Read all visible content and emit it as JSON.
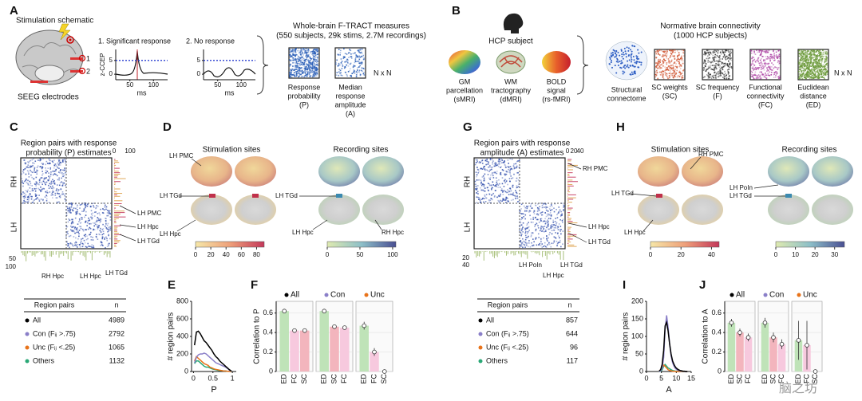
{
  "figure": {
    "A": {
      "label": "A",
      "title": "Stimulation schematic",
      "electrodes": "SEEG electrodes",
      "electrode_numbers": [
        "1",
        "2"
      ],
      "traces": [
        {
          "title": "1. Significant response",
          "ylabel": "z-CCEP",
          "xlabel": "ms",
          "xlim": [
            20,
            130
          ],
          "ylim": [
            -2,
            9
          ],
          "xticks": [
            50,
            100
          ],
          "yticks": [
            0,
            5
          ]
        },
        {
          "title": "2. No response",
          "xlabel": "ms",
          "xlim": [
            20,
            130
          ],
          "ylim": [
            -2,
            9
          ],
          "xticks": [
            50,
            100
          ],
          "yticks": [
            0,
            5
          ]
        }
      ],
      "heading": "Whole-brain F-TRACT measures",
      "subheading": "(550 subjects, 29k stims, 2.7M recordings)",
      "matrices": [
        [
          "Response",
          "probability",
          "(P)"
        ],
        [
          "Median",
          "response",
          "amplitude",
          "(A)"
        ]
      ],
      "size": "N x N"
    },
    "B": {
      "label": "B",
      "subject": "HCP subject",
      "modalities": [
        [
          "GM",
          "parcellation",
          "(sMRI)"
        ],
        [
          "WM",
          "tractography",
          "(dMRI)"
        ],
        [
          "BOLD",
          "signal",
          "(rs-fMRI)"
        ]
      ],
      "connectome": [
        "Structural",
        "connectome"
      ],
      "heading": "Normative brain connectivity",
      "subheading": "(1000 HCP subjects)",
      "matrices": [
        [
          "SC weights",
          "(SC)"
        ],
        [
          "SC frequency",
          "(F)"
        ],
        [
          "Functional",
          "connectivity",
          "(FC)"
        ],
        [
          "Euclidean",
          "distance",
          "(ED)"
        ]
      ],
      "size": "N x N"
    },
    "C": {
      "label": "C",
      "title": [
        "Region pairs with response",
        "probability (P) estimates"
      ],
      "hemispheres": [
        "RH",
        "LH"
      ],
      "side_ticks": [
        0,
        100
      ],
      "bottom_ticks": [
        50,
        100
      ],
      "annotations": [
        "LH PMC",
        "LH Hpc",
        "LH TGd",
        "RH Hpc",
        "LH Hpc",
        "LH TGd"
      ]
    },
    "D": {
      "label": "D",
      "groups": [
        "Stimulation sites",
        "Recording sites"
      ],
      "annotations": [
        "LH PMC",
        "LH TGd",
        "LH Hpc",
        "LH TGd",
        "LH Hpc",
        "RH Hpc"
      ],
      "colorbars": [
        {
          "lim": [
            0,
            90
          ],
          "ticks": [
            0,
            20,
            40,
            60,
            80
          ]
        },
        {
          "lim": [
            0,
            105
          ],
          "ticks": [
            0,
            50,
            100
          ]
        }
      ]
    },
    "G": {
      "label": "G",
      "title": [
        "Region pairs with response",
        "amplitude (A) estimates"
      ],
      "hemispheres": [
        "RH",
        "LH"
      ],
      "side_ticks": [
        0,
        20,
        40
      ],
      "bottom_ticks": [
        20,
        40
      ],
      "annotations": [
        "RH PMC",
        "LH Hpc",
        "LH TGd",
        "LH PoIn",
        "LH Hpc",
        "LH TGd"
      ]
    },
    "H": {
      "label": "H",
      "groups": [
        "Stimulation sites",
        "Recording sites"
      ],
      "annotations": [
        "RH PMC",
        "LH TGd",
        "LH Hpc",
        "LH PoIn",
        "LH TGd"
      ],
      "colorbars": [
        {
          "lim": [
            0,
            45
          ],
          "ticks": [
            0,
            20,
            40
          ]
        },
        {
          "lim": [
            0,
            35
          ],
          "ticks": [
            0,
            10,
            20,
            30
          ]
        }
      ]
    },
    "watermark": "脑之坊"
  },
  "chart_data": [
    {
      "type": "line",
      "panel": "E",
      "xlabel": "P",
      "ylabel": "# region pairs",
      "x": [
        0.025,
        0.075,
        0.125,
        0.175,
        0.225,
        0.275,
        0.325,
        0.375,
        0.425,
        0.475,
        0.525,
        0.575,
        0.625,
        0.675,
        0.725,
        0.775,
        0.825,
        0.875,
        0.925,
        0.975
      ],
      "xlim": [
        -0.05,
        1.1
      ],
      "xticks": [
        0,
        0.5,
        1
      ],
      "ylim": [
        0,
        800
      ],
      "yticks": [
        0,
        200,
        400,
        600,
        800
      ],
      "legend_header": [
        "Region pairs",
        "n"
      ],
      "series": [
        {
          "name": "All",
          "n": 4989,
          "color": "#000000",
          "values": [
            300,
            450,
            460,
            430,
            390,
            350,
            330,
            300,
            270,
            240,
            200,
            170,
            150,
            120,
            100,
            80,
            60,
            40,
            20,
            5
          ]
        },
        {
          "name": "Con (Fᵢⱼ >.75)",
          "n": 2792,
          "color": "#8a7fc8",
          "values": [
            100,
            160,
            190,
            200,
            200,
            210,
            200,
            180,
            160,
            140,
            120,
            100,
            90,
            80,
            70,
            60,
            50,
            35,
            15,
            5
          ]
        },
        {
          "name": "Unc (Fᵢⱼ <.25)",
          "n": 1065,
          "color": "#e8731a",
          "values": [
            120,
            170,
            150,
            130,
            110,
            90,
            80,
            70,
            50,
            40,
            30,
            25,
            20,
            15,
            10,
            5,
            5,
            3,
            2,
            0
          ]
        },
        {
          "name": "Others",
          "n": 1132,
          "color": "#2aa876",
          "values": [
            90,
            120,
            120,
            100,
            80,
            60,
            50,
            50,
            40,
            30,
            25,
            20,
            15,
            10,
            10,
            5,
            5,
            2,
            1,
            0
          ]
        }
      ]
    },
    {
      "type": "grouped_bar",
      "panel": "F",
      "ylabel": "Correlation to P",
      "ylim": [
        0,
        0.72
      ],
      "yticks": [
        0,
        0.2,
        0.4,
        0.6
      ],
      "groups": [
        {
          "name": "All",
          "color": "#000000",
          "categories": [
            "ED",
            "FC",
            "SC"
          ],
          "colors": [
            "#bfe3b8",
            "#f7c9de",
            "#f3b5bd"
          ],
          "values": [
            0.62,
            0.42,
            0.42
          ],
          "errors": [
            0.01,
            0.01,
            0.01
          ]
        },
        {
          "name": "Con",
          "color": "#8a7fc8",
          "categories": [
            "ED",
            "SC",
            "FC"
          ],
          "colors": [
            "#bfe3b8",
            "#f3b5bd",
            "#f7c9de"
          ],
          "values": [
            0.62,
            0.46,
            0.45
          ],
          "errors": [
            0.015,
            0.015,
            0.015
          ]
        },
        {
          "name": "Unc",
          "color": "#e8731a",
          "categories": [
            "ED",
            "FC",
            "SC"
          ],
          "colors": [
            "#bfe3b8",
            "#f7c9de",
            "#f3b5bd"
          ],
          "values": [
            0.47,
            0.2,
            0
          ],
          "errors": [
            0.04,
            0.04,
            0.01
          ]
        }
      ]
    },
    {
      "type": "line",
      "panel": "I",
      "xlabel": "A",
      "ylabel": "# region pairs",
      "x": [
        4.25,
        4.75,
        5.25,
        5.75,
        6.25,
        6.75,
        7.25,
        7.75,
        8.25,
        8.75,
        9.25,
        9.75,
        10.25,
        10.75,
        11.25,
        11.75,
        12.25,
        12.75,
        13.25,
        13.75
      ],
      "xlim": [
        0,
        15
      ],
      "xticks": [
        0,
        5,
        10,
        15
      ],
      "ylim": [
        0,
        200
      ],
      "yticks": [
        0,
        50,
        100,
        150,
        200
      ],
      "legend_header": [
        "Region pairs",
        "n"
      ],
      "series": [
        {
          "name": "All",
          "n": 857,
          "color": "#000000",
          "values": [
            2,
            5,
            20,
            60,
            130,
            140,
            115,
            80,
            50,
            30,
            20,
            12,
            8,
            5,
            3,
            2,
            1,
            1,
            0,
            0
          ]
        },
        {
          "name": "Con (Fᵢⱼ >.75)",
          "n": 644,
          "color": "#8a7fc8",
          "values": [
            0,
            2,
            10,
            40,
            120,
            160,
            125,
            80,
            45,
            25,
            15,
            8,
            5,
            3,
            2,
            1,
            1,
            0,
            0,
            0
          ]
        },
        {
          "name": "Unc (Fᵢⱼ <.25)",
          "n": 96,
          "color": "#e8731a",
          "values": [
            2,
            5,
            12,
            18,
            15,
            10,
            5,
            3,
            2,
            1,
            1,
            0,
            0,
            0,
            0,
            0,
            0,
            0,
            0,
            0
          ]
        },
        {
          "name": "Others",
          "n": 117,
          "color": "#2aa876",
          "values": [
            0,
            1,
            5,
            15,
            20,
            15,
            10,
            8,
            5,
            3,
            2,
            1,
            1,
            0,
            0,
            0,
            0,
            0,
            0,
            0
          ]
        }
      ]
    },
    {
      "type": "grouped_bar",
      "panel": "J",
      "ylabel": "Correlation to A",
      "ylim": [
        0,
        0.72
      ],
      "yticks": [
        0,
        0.2,
        0.4,
        0.6
      ],
      "groups": [
        {
          "name": "All",
          "color": "#000000",
          "categories": [
            "ED",
            "SC",
            "FC"
          ],
          "colors": [
            "#bfe3b8",
            "#f3b5bd",
            "#f7c9de"
          ],
          "values": [
            0.5,
            0.4,
            0.35
          ],
          "errors": [
            0.04,
            0.04,
            0.04
          ]
        },
        {
          "name": "Con",
          "color": "#8a7fc8",
          "categories": [
            "ED",
            "SC",
            "FC"
          ],
          "colors": [
            "#bfe3b8",
            "#f3b5bd",
            "#f7c9de"
          ],
          "values": [
            0.5,
            0.35,
            0.28
          ],
          "errors": [
            0.05,
            0.05,
            0.05
          ]
        },
        {
          "name": "Unc",
          "color": "#e8731a",
          "categories": [
            "ED",
            "FC",
            "SC"
          ],
          "colors": [
            "#bfe3b8",
            "#f7c9de",
            "#f3b5bd"
          ],
          "values": [
            0.32,
            0.27,
            0
          ],
          "errors": [
            0.2,
            0.25,
            0.01
          ]
        }
      ]
    }
  ]
}
